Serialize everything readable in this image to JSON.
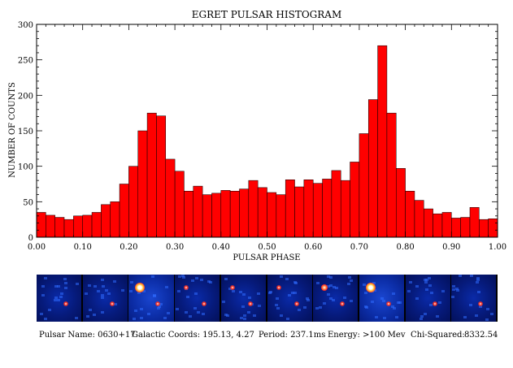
{
  "chart_data": {
    "type": "bar",
    "title": "EGRET PULSAR HISTOGRAM",
    "xlabel": "PULSAR PHASE",
    "ylabel": "NUMBER OF COUNTS",
    "xlim": [
      0,
      1
    ],
    "ylim": [
      0,
      300
    ],
    "x_ticks": [
      "0.00",
      "0.10",
      "0.20",
      "0.30",
      "0.40",
      "0.50",
      "0.60",
      "0.70",
      "0.80",
      "0.90",
      "1.00"
    ],
    "y_ticks": [
      "0",
      "50",
      "100",
      "150",
      "200",
      "250",
      "300"
    ],
    "bin_width": 0.02,
    "color": "#ff0000",
    "values": [
      35,
      31,
      28,
      25,
      30,
      31,
      35,
      46,
      50,
      75,
      100,
      150,
      175,
      171,
      110,
      93,
      65,
      72,
      60,
      62,
      66,
      65,
      68,
      80,
      70,
      63,
      60,
      81,
      71,
      81,
      76,
      82,
      94,
      80,
      106,
      146,
      194,
      270,
      175,
      97,
      65,
      52,
      40,
      33,
      35,
      27,
      28,
      42,
      25,
      26
    ]
  },
  "image_strip": {
    "frames": [
      {
        "hot": false,
        "source": "small",
        "flare": null
      },
      {
        "hot": false,
        "source": "small",
        "flare": null
      },
      {
        "hot": true,
        "source": "small",
        "flare": "big"
      },
      {
        "hot": false,
        "source": "small",
        "flare": "small"
      },
      {
        "hot": false,
        "source": "small",
        "flare": "small"
      },
      {
        "hot": false,
        "source": "small",
        "flare": "small"
      },
      {
        "hot": false,
        "source": "small",
        "flare": "med"
      },
      {
        "hot": true,
        "source": "small",
        "flare": "big"
      },
      {
        "hot": false,
        "source": "small",
        "flare": null
      },
      {
        "hot": false,
        "source": "small",
        "flare": null
      }
    ]
  },
  "info": {
    "pulsar_name": "Pulsar Name: 0630+17",
    "galactic_coords": "Galactic Coords: 195.13,  4.27",
    "period": "Period: 237.1ms",
    "energy": "Energy: >100 Mev",
    "chi_squared_label": "Chi-Squared:",
    "chi_squared_value": "8332.54"
  }
}
